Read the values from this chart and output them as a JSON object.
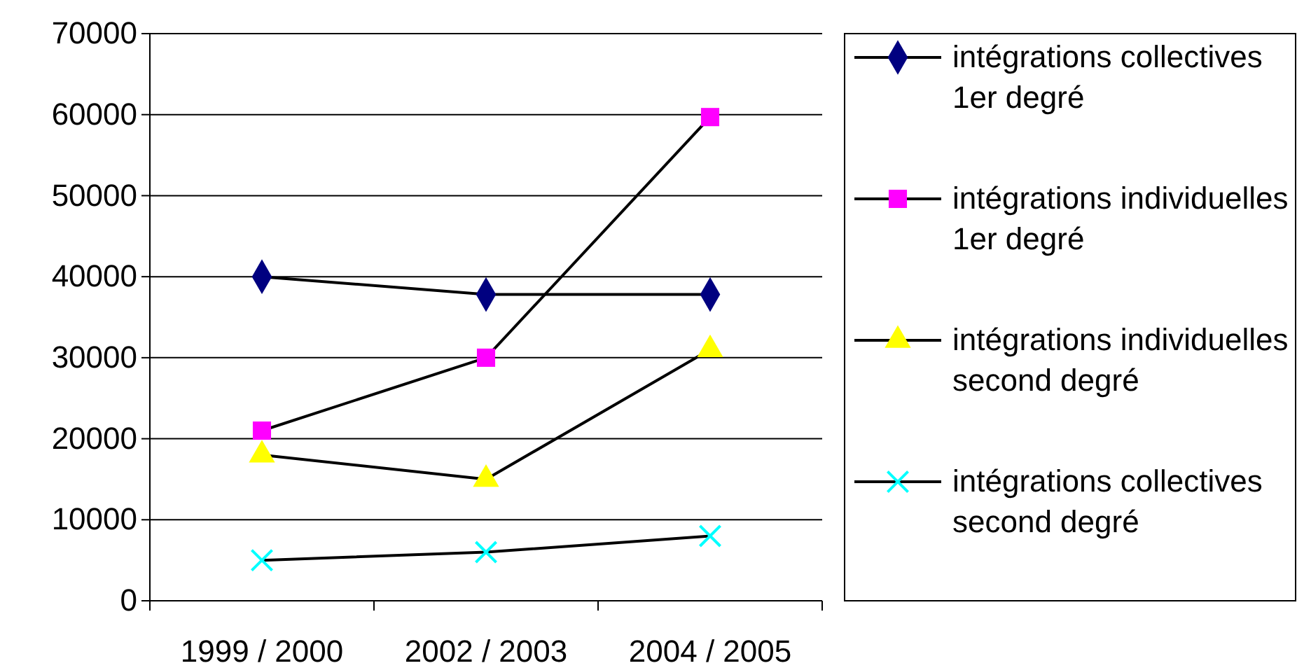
{
  "chart_data": {
    "type": "line",
    "categories": [
      "1999 / 2000",
      "2002 / 2003",
      "2004 / 2005"
    ],
    "series": [
      {
        "name": "intégrations collectives 1er degré",
        "color": "#000080",
        "marker": "diamond",
        "values": [
          40000,
          37800,
          37800
        ]
      },
      {
        "name": "intégrations individuelles 1er degré",
        "color": "#ff00ff",
        "marker": "square",
        "values": [
          21000,
          30000,
          59700
        ]
      },
      {
        "name": "intégrations individuelles second degré",
        "color": "#ffff00",
        "marker": "triangle",
        "values": [
          18000,
          15000,
          31000
        ]
      },
      {
        "name": "intégrations collectives second degré",
        "color": "#00ffff",
        "marker": "cross",
        "values": [
          5000,
          6000,
          8000
        ]
      }
    ],
    "ylim": [
      0,
      70000
    ],
    "yticks": [
      0,
      10000,
      20000,
      30000,
      40000,
      50000,
      60000,
      70000
    ],
    "grid": "y",
    "legend": "right",
    "line_style": "solid"
  }
}
